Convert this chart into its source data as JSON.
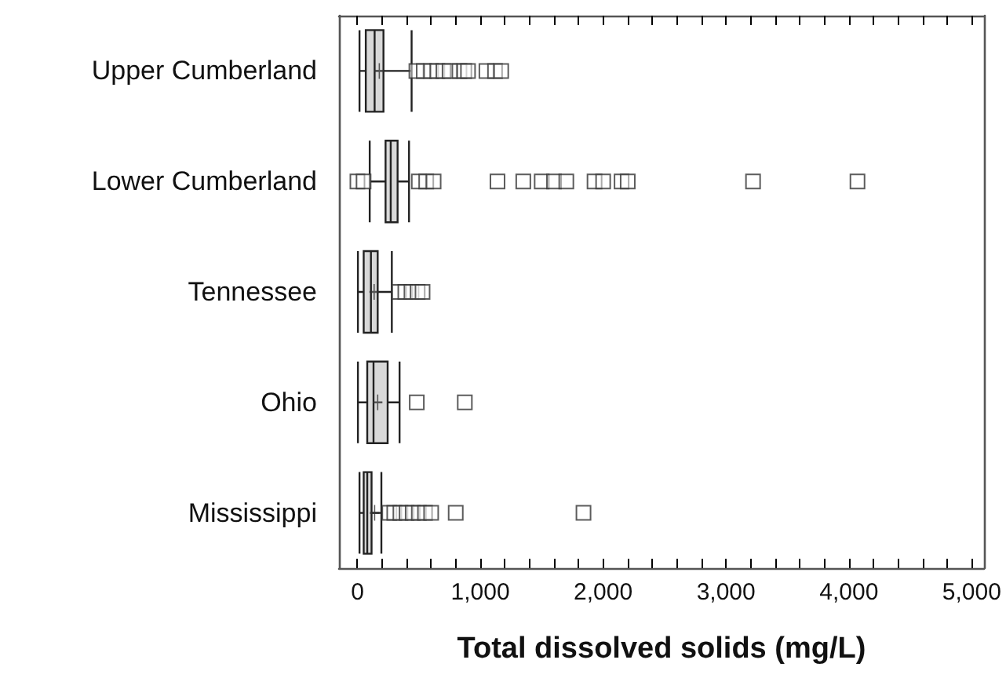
{
  "chart_data": {
    "type": "box",
    "orientation": "horizontal",
    "xlabel": "Total dissolved solids (mg/L)",
    "categories": [
      "Upper Cumberland",
      "Lower Cumberland",
      "Tennessee",
      "Ohio",
      "Mississippi"
    ],
    "color": "#d9d9d9",
    "boxes": [
      {
        "low": 17,
        "q1": 68,
        "median": 140,
        "q3": 212,
        "high": 441,
        "mean": 178,
        "outliers": [
          480,
          540,
          600,
          650,
          700,
          750,
          830,
          870,
          900,
          1050,
          1120,
          1170
        ]
      },
      {
        "low": 100,
        "q1": 229,
        "median": 271,
        "q3": 327,
        "high": 420,
        "outliers": [
          0,
          50,
          500,
          560,
          620,
          1140,
          1350,
          1500,
          1600,
          1700,
          1930,
          2000,
          2150,
          2200,
          3220,
          4070
        ]
      },
      {
        "low": 4,
        "q1": 51,
        "median": 110,
        "q3": 165,
        "high": 280,
        "mean": 136,
        "outliers": [
          340,
          390,
          440,
          490,
          530
        ]
      },
      {
        "low": 4,
        "q1": 80,
        "median": 131,
        "q3": 246,
        "high": 343,
        "mean": 165,
        "outliers": [
          483,
          874
        ]
      },
      {
        "low": 17,
        "q1": 51,
        "median": 80,
        "q3": 115,
        "high": 195,
        "mean": 140,
        "outliers": [
          260,
          300,
          350,
          400,
          450,
          500,
          550,
          600,
          800,
          1840
        ]
      }
    ],
    "xlim": [
      -150,
      5100
    ],
    "xticks": [
      {
        "value": 0,
        "label": "0"
      },
      {
        "value": 200,
        "label": null
      },
      {
        "value": 400,
        "label": null
      },
      {
        "value": 600,
        "label": null
      },
      {
        "value": 800,
        "label": null
      },
      {
        "value": 1000,
        "label": "1,000"
      },
      {
        "value": 1200,
        "label": null
      },
      {
        "value": 1400,
        "label": null
      },
      {
        "value": 1600,
        "label": null
      },
      {
        "value": 1800,
        "label": null
      },
      {
        "value": 2000,
        "label": "2,000"
      },
      {
        "value": 2200,
        "label": null
      },
      {
        "value": 2400,
        "label": null
      },
      {
        "value": 2600,
        "label": null
      },
      {
        "value": 2800,
        "label": null
      },
      {
        "value": 3000,
        "label": "3,000"
      },
      {
        "value": 3200,
        "label": null
      },
      {
        "value": 3400,
        "label": null
      },
      {
        "value": 3600,
        "label": null
      },
      {
        "value": 3800,
        "label": null
      },
      {
        "value": 4000,
        "label": "4,000"
      },
      {
        "value": 4200,
        "label": null
      },
      {
        "value": 4400,
        "label": null
      },
      {
        "value": 4600,
        "label": null
      },
      {
        "value": 4800,
        "label": null
      },
      {
        "value": 5000,
        "label": "5,000"
      }
    ],
    "grid": false
  }
}
